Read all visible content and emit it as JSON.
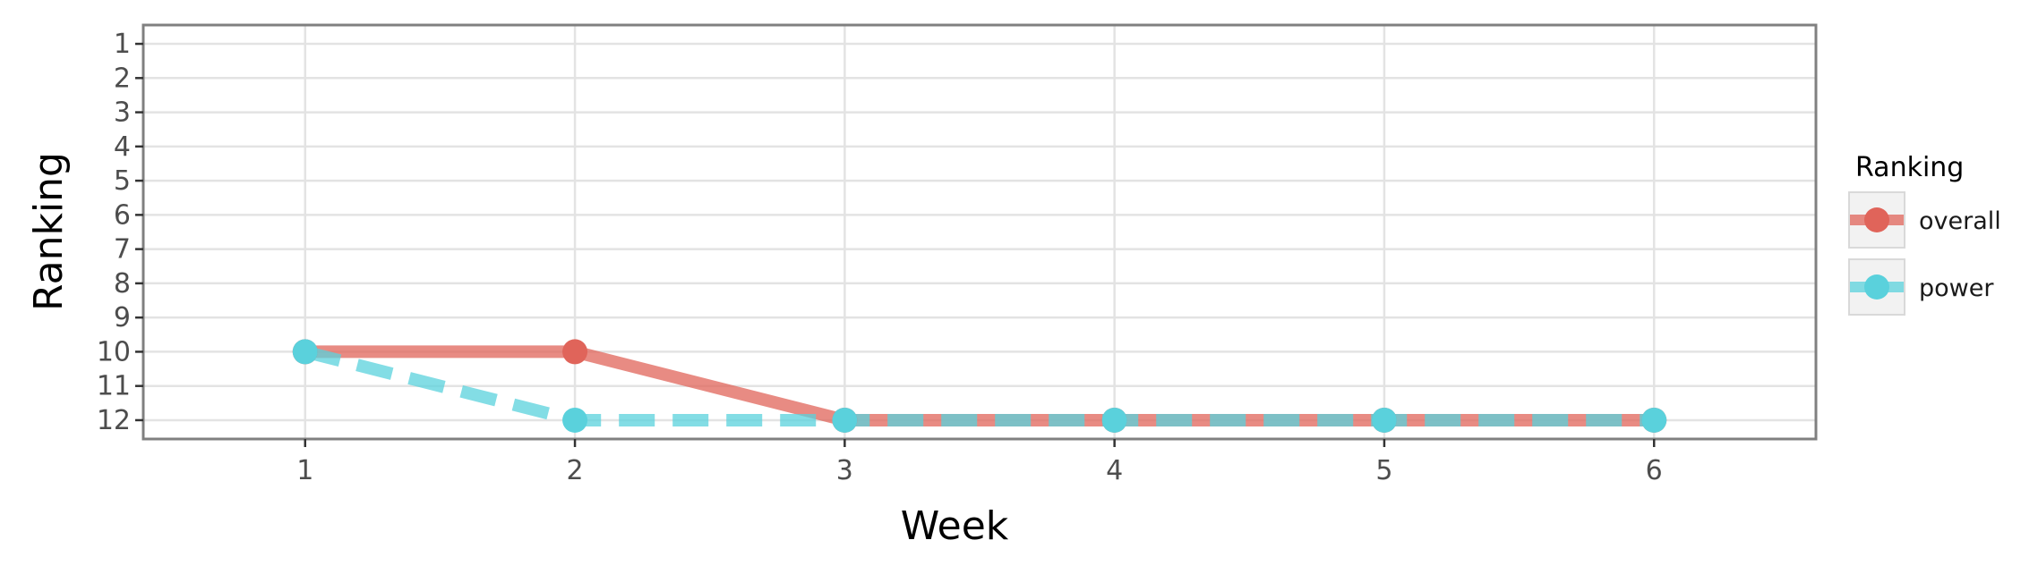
{
  "chart_data": {
    "type": "line",
    "title": "",
    "xlabel": "Week",
    "ylabel": "Ranking",
    "x": [
      1,
      2,
      3,
      4,
      5,
      6
    ],
    "x_ticks": [
      "1",
      "2",
      "3",
      "4",
      "5",
      "6"
    ],
    "y_ticks": [
      "1",
      "2",
      "3",
      "4",
      "5",
      "6",
      "7",
      "8",
      "9",
      "10",
      "11",
      "12"
    ],
    "xlim": [
      0.4,
      6.6
    ],
    "ylim": [
      12.55,
      0.45
    ],
    "y_reversed": true,
    "grid": true,
    "legend": {
      "title": "Ranking",
      "placement": "right"
    },
    "series": [
      {
        "name": "overall",
        "values": [
          10,
          10,
          12,
          12,
          12,
          12
        ],
        "color": "#e0645a",
        "linestyle": "solid"
      },
      {
        "name": "power",
        "values": [
          10,
          12,
          12,
          12,
          12,
          12
        ],
        "color": "#5ad1dc",
        "linestyle": "dashed"
      }
    ]
  }
}
